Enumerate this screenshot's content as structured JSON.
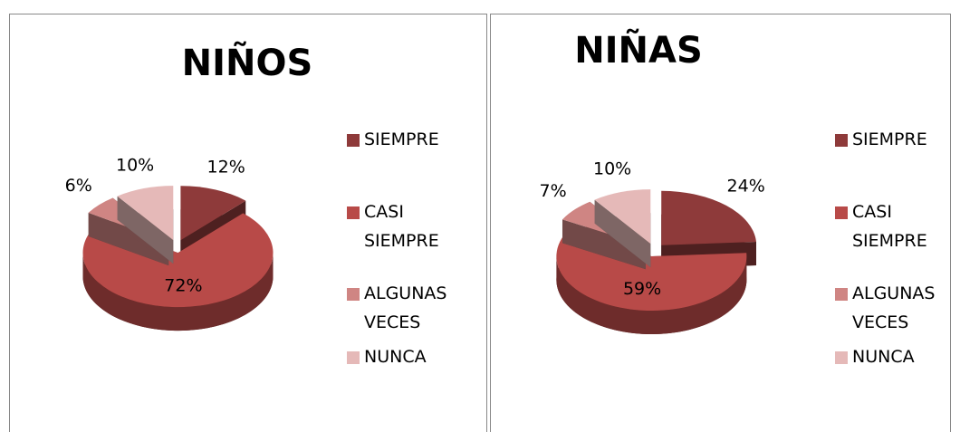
{
  "chart_data": [
    {
      "type": "pie",
      "title": "NIÑOS",
      "categories": [
        "SIEMPRE",
        "CASI SIEMPRE",
        "ALGUNAS VECES",
        "NUNCA"
      ],
      "values": [
        12,
        72,
        6,
        10
      ],
      "value_labels": [
        "12%",
        "72%",
        "6%",
        "10%"
      ],
      "colors": [
        "#8e3a3a",
        "#b84a48",
        "#cf8583",
        "#e5b9b8"
      ],
      "legend": "right"
    },
    {
      "type": "pie",
      "title": "NIÑAS",
      "categories": [
        "SIEMPRE",
        "CASI SIEMPRE",
        "ALGUNAS VECES",
        "NUNCA"
      ],
      "values": [
        24,
        59,
        7,
        10
      ],
      "value_labels": [
        "24%",
        "59%",
        "7%",
        "10%"
      ],
      "colors": [
        "#8e3a3a",
        "#b84a48",
        "#cf8583",
        "#e5b9b8"
      ],
      "legend": "right"
    }
  ]
}
